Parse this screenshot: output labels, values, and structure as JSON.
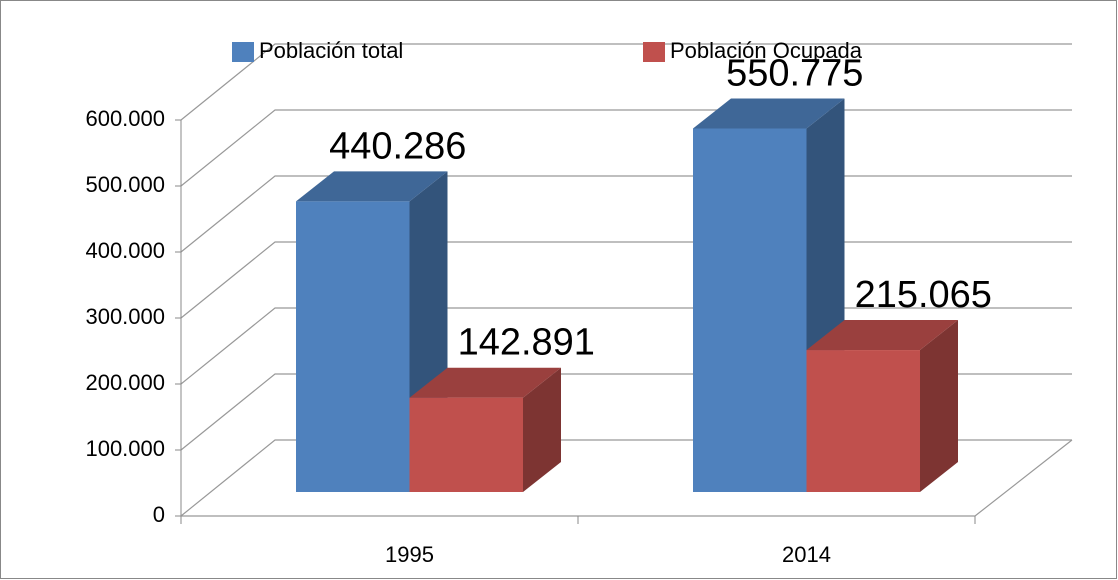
{
  "chart_data": {
    "type": "bar3d",
    "categories": [
      "1995",
      "2014"
    ],
    "series": [
      {
        "name": "Población total",
        "color": "#4f81bd",
        "values": [
          440286,
          550775
        ],
        "value_labels": [
          "440.286",
          "550.775"
        ]
      },
      {
        "name": "Población Ocupada",
        "color": "#c0504d",
        "values": [
          142891,
          215065
        ],
        "value_labels": [
          "142.891",
          "215.065"
        ]
      }
    ],
    "ylim": [
      0,
      600000
    ],
    "yticks": [
      0,
      {
        "value": 100000,
        "label": "100.000"
      },
      {
        "value": 200000,
        "label": "200.000"
      },
      {
        "value": 300000,
        "label": "300.000"
      },
      {
        "value": 400000,
        "label": "400.000"
      },
      {
        "value": 500000,
        "label": "500.000"
      },
      {
        "value": 600000,
        "label": "600.000"
      }
    ],
    "grid": true,
    "legend": "top"
  }
}
